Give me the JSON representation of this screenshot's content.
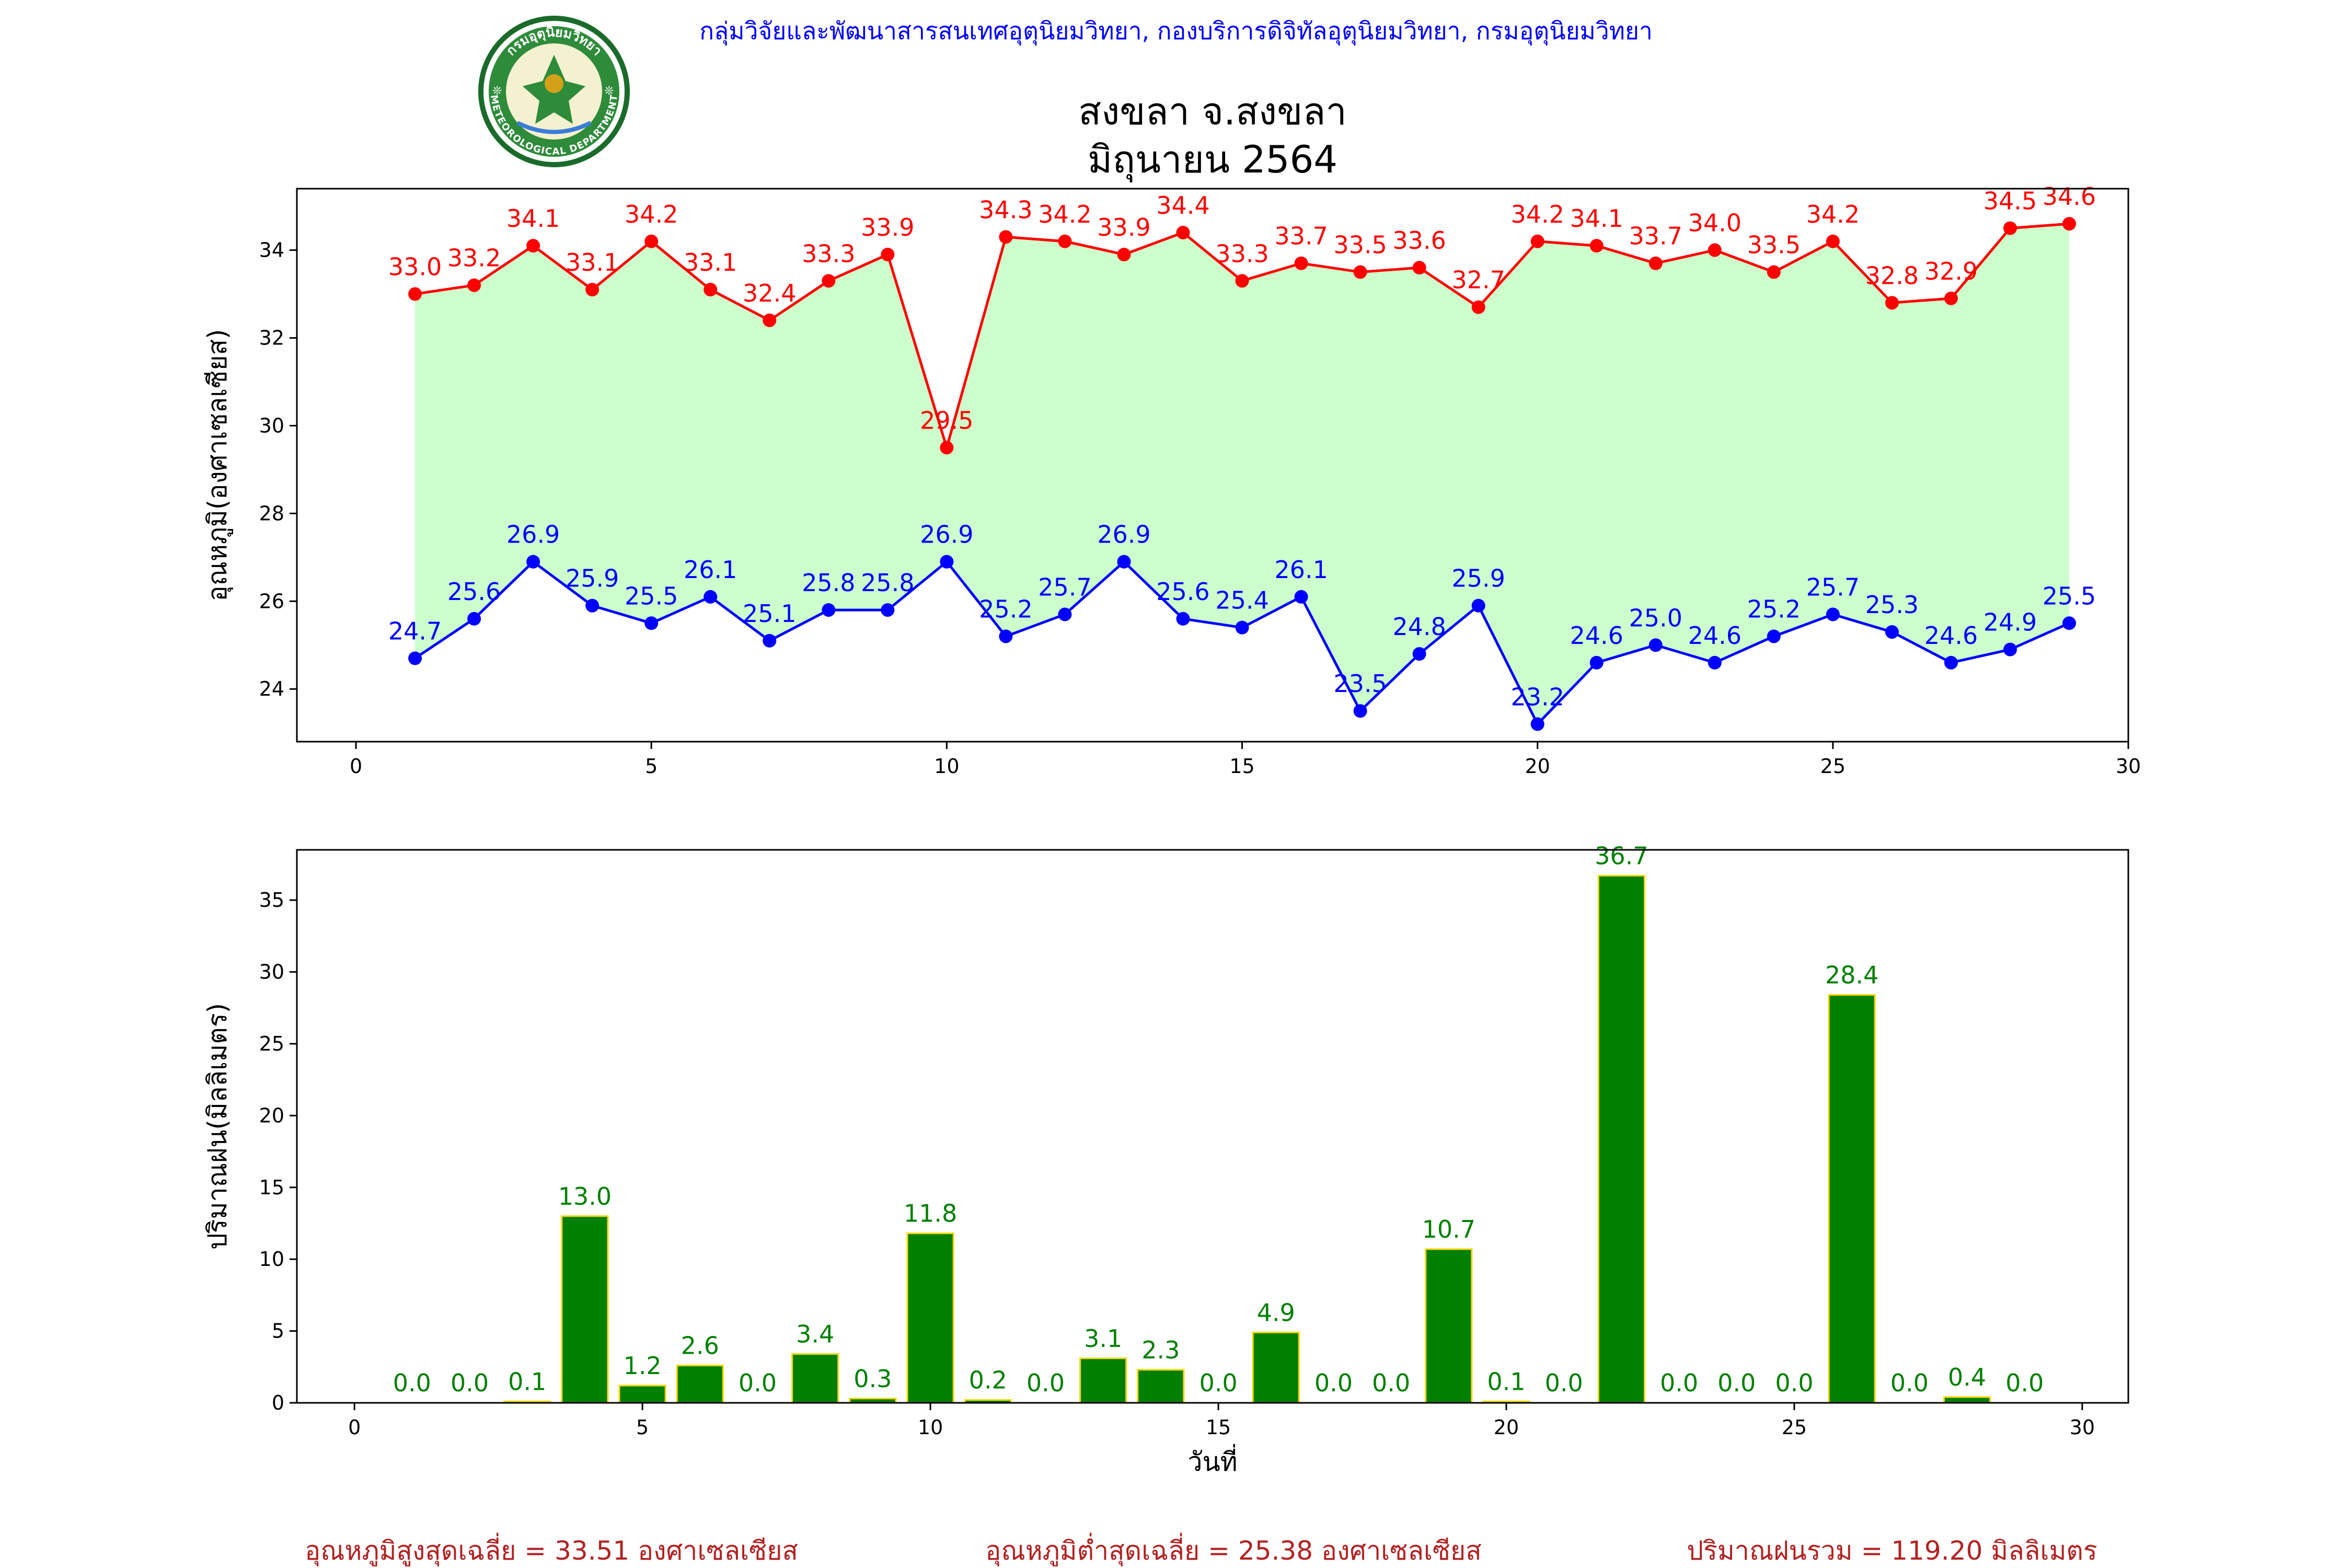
{
  "header": {
    "agency": "กลุ่มวิจัยและพัฒนาสารสนเทศอุตุนิยมวิทยา, กองบริการดิจิทัลอุตุนิยมวิทยา, กรมอุตุนิยมวิทยา",
    "logo_text_top": "กรมอุตุนิยมวิทยา",
    "logo_text_bottom": "METEOROLOGICAL DEPARTMENT",
    "title_line1": "สงขลา จ.สงขลา",
    "title_line2": "มิถุนายน 2564"
  },
  "colors": {
    "max_line": "#ff0000",
    "min_line": "#0000ff",
    "fill": "#ccffcc",
    "bar": "#008000",
    "bar_edge": "#ffd700",
    "bar_label": "#008000",
    "header_text": "#0000ff",
    "footer_text": "#b22222"
  },
  "chart_data": [
    {
      "type": "line",
      "ylabel": "อุณหภูมิ(องศาเซลเซียส)",
      "xlabel": "",
      "xlim": [
        -1,
        30
      ],
      "ylim": [
        22.8,
        35.4
      ],
      "xticks": [
        0,
        5,
        10,
        15,
        20,
        25,
        30
      ],
      "yticks": [
        24,
        26,
        28,
        30,
        32,
        34
      ],
      "fill_between": true,
      "x": [
        1,
        2,
        3,
        4,
        5,
        6,
        7,
        8,
        9,
        10,
        11,
        12,
        13,
        14,
        15,
        16,
        17,
        18,
        19,
        20,
        21,
        22,
        23,
        24,
        25,
        26,
        27,
        28,
        29
      ],
      "series": [
        {
          "values": [
            33.0,
            33.2,
            34.1,
            33.1,
            34.2,
            33.1,
            32.4,
            33.3,
            33.9,
            29.5,
            34.3,
            34.2,
            33.9,
            34.4,
            33.3,
            33.7,
            33.5,
            33.6,
            32.7,
            34.2,
            34.1,
            33.7,
            34.0,
            33.5,
            34.2,
            32.8,
            32.9,
            34.5,
            34.6
          ]
        },
        {
          "values": [
            24.7,
            25.6,
            26.9,
            25.9,
            25.5,
            26.1,
            25.1,
            25.8,
            25.8,
            26.9,
            25.2,
            25.7,
            26.9,
            25.6,
            25.4,
            26.1,
            23.5,
            24.8,
            25.9,
            23.2,
            24.6,
            25.0,
            24.6,
            25.2,
            25.7,
            25.3,
            24.6,
            24.9,
            25.5
          ]
        }
      ]
    },
    {
      "type": "bar",
      "ylabel": "ปริมาณฝน(มิลลิเมตร)",
      "xlabel": "วันที่",
      "xlim": [
        -1,
        30.8
      ],
      "ylim": [
        0,
        38.5
      ],
      "xticks": [
        0,
        5,
        10,
        15,
        20,
        25,
        30
      ],
      "yticks": [
        0,
        5,
        10,
        15,
        20,
        25,
        30,
        35
      ],
      "x": [
        1,
        2,
        3,
        4,
        5,
        6,
        7,
        8,
        9,
        10,
        11,
        12,
        13,
        14,
        15,
        16,
        17,
        18,
        19,
        20,
        21,
        22,
        23,
        24,
        25,
        26,
        27,
        28,
        29
      ],
      "values": [
        0.0,
        0.0,
        0.1,
        13.0,
        1.2,
        2.6,
        0.0,
        3.4,
        0.3,
        11.8,
        0.2,
        0.0,
        3.1,
        2.3,
        0.0,
        4.9,
        0.0,
        0.0,
        10.7,
        0.1,
        0.0,
        36.7,
        0.0,
        0.0,
        0.0,
        28.4,
        0.0,
        0.4,
        0.0
      ]
    }
  ],
  "footer": {
    "avg_max": "อุณหภูมิสูงสุดเฉลี่ย = 33.51 องศาเซลเซียส",
    "avg_min": "อุณหภูมิต่ำสุดเฉลี่ย = 25.38 องศาเซลเซียส",
    "total_rain": "ปริมาณฝนรวม = 119.20 มิลลิเมตร"
  }
}
